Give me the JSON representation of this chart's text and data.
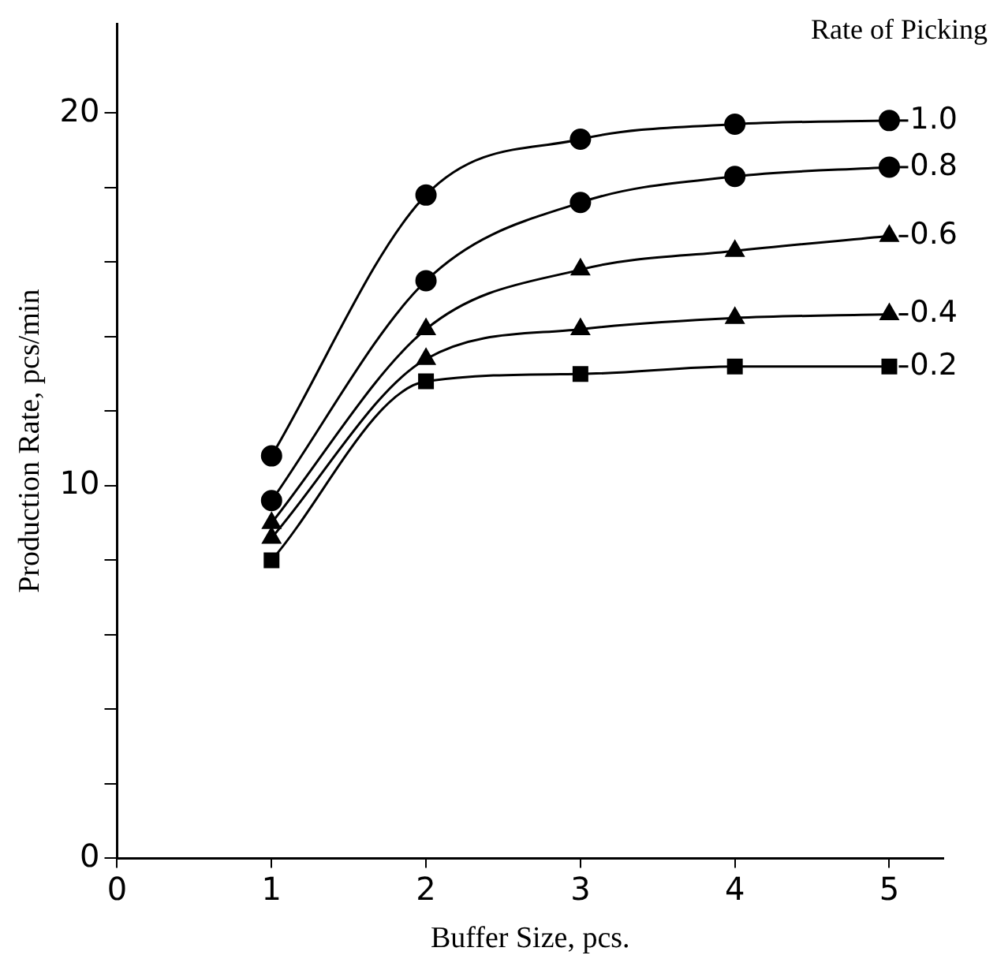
{
  "chart_data": {
    "type": "line",
    "xlabel": "Buffer Size, pcs.",
    "ylabel": "Production Rate, pcs/min",
    "legend_title": "Rate of Picking",
    "x": [
      1,
      2,
      3,
      4,
      5
    ],
    "series": [
      {
        "name": "1.0",
        "color": "#000000",
        "marker": "circle",
        "values": [
          10.8,
          17.8,
          19.3,
          19.7,
          19.8
        ]
      },
      {
        "name": "0.8",
        "color": "#000000",
        "marker": "circle",
        "values": [
          9.6,
          15.5,
          17.6,
          18.3,
          18.55
        ]
      },
      {
        "name": "0.6",
        "color": "#000000",
        "marker": "triangle",
        "values": [
          9.0,
          14.2,
          15.8,
          16.3,
          16.7
        ]
      },
      {
        "name": "0.4",
        "color": "#000000",
        "marker": "triangle",
        "values": [
          8.6,
          13.4,
          14.2,
          14.5,
          14.6
        ]
      },
      {
        "name": "0.2",
        "color": "#000000",
        "marker": "square",
        "values": [
          8.0,
          12.8,
          13.0,
          13.2,
          13.2
        ]
      }
    ],
    "xlim": [
      0,
      5.35
    ],
    "xticks": [
      0,
      1,
      2,
      3,
      4,
      5
    ],
    "ylim": [
      0,
      22.4
    ],
    "yticks": [
      0,
      {
        "value": 2,
        "label": null
      },
      {
        "value": 4,
        "label": null
      },
      {
        "value": 6,
        "label": null
      },
      {
        "value": 8,
        "label": null
      },
      10,
      {
        "value": 12,
        "label": null
      },
      {
        "value": 14,
        "label": null
      },
      {
        "value": 16,
        "label": null
      },
      {
        "value": 18,
        "label": null
      },
      20
    ],
    "grid": false,
    "legend": "right",
    "line_style": "solid"
  }
}
